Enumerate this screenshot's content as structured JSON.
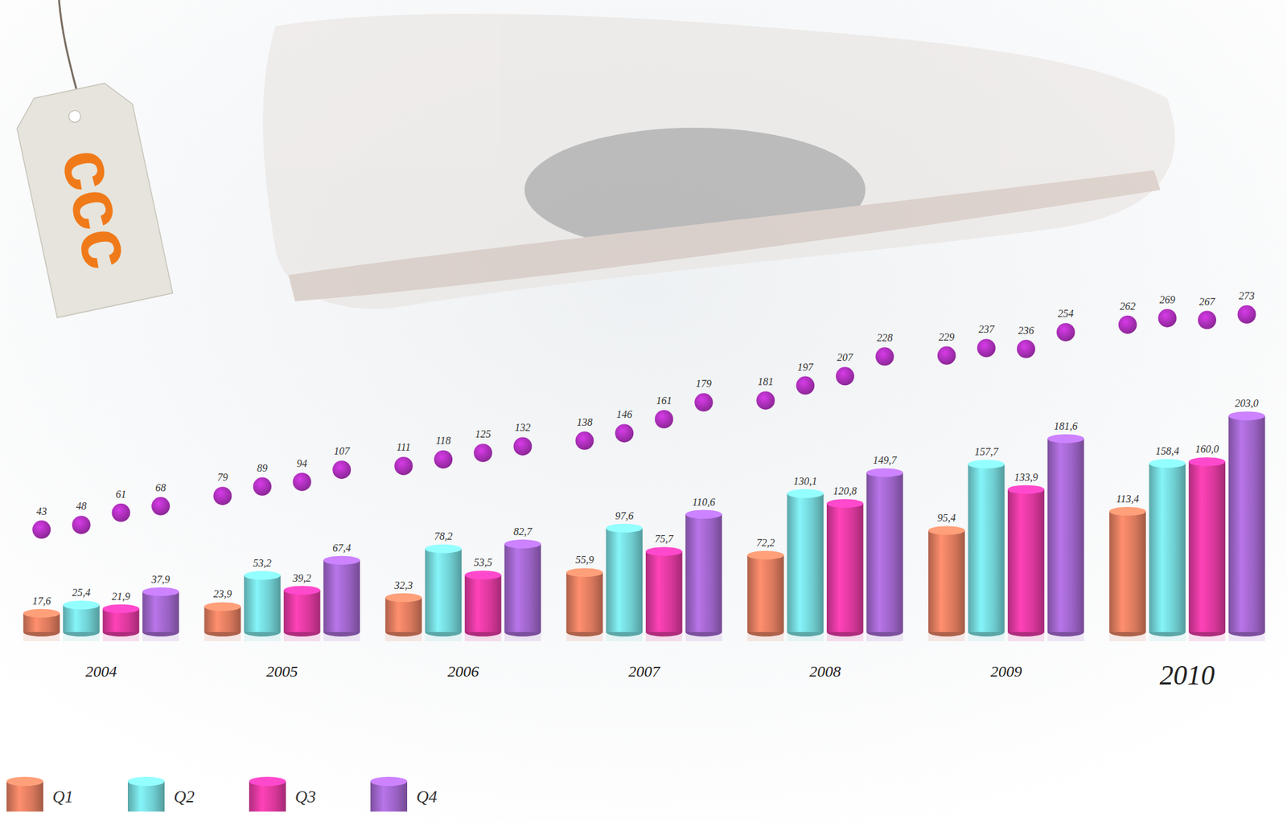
{
  "logo": "ccc",
  "chart_data": [
    {
      "type": "bar",
      "categories": [
        "2004",
        "2005",
        "2006",
        "2007",
        "2008",
        "2009",
        "2010"
      ],
      "series": [
        {
          "name": "Q1",
          "color": "#d8785c",
          "values": [
            17.6,
            23.9,
            32.3,
            55.9,
            72.2,
            95.4,
            113.4
          ],
          "value_labels": [
            "17,6",
            "23,9",
            "32,3",
            "55,9",
            "72,2",
            "95,4",
            "113,4"
          ]
        },
        {
          "name": "Q2",
          "color": "#6fcdd0",
          "values": [
            25.4,
            53.2,
            78.2,
            97.6,
            130.1,
            157.7,
            158.4
          ],
          "value_labels": [
            "25,4",
            "53,2",
            "78,2",
            "97,6",
            "130,1",
            "157,7",
            "158,4"
          ]
        },
        {
          "name": "Q3",
          "color": "#d8379a",
          "values": [
            21.9,
            39.2,
            53.5,
            75.7,
            120.8,
            133.9,
            160.0
          ],
          "value_labels": [
            "21,9",
            "39,2",
            "53,5",
            "75,7",
            "120,8",
            "133,9",
            "160,0"
          ]
        },
        {
          "name": "Q4",
          "color": "#9a62c4",
          "values": [
            37.9,
            67.4,
            82.7,
            110.6,
            149.7,
            181.6,
            203.0
          ],
          "value_labels": [
            "37,9",
            "67,4",
            "82,7",
            "110,6",
            "149,7",
            "181,6",
            "203,0"
          ]
        }
      ],
      "data_labels": true,
      "legend": "bottom-left",
      "tick_labels": false
    },
    {
      "type": "scatter",
      "values": [
        43,
        48,
        61,
        68,
        79,
        89,
        94,
        107,
        111,
        118,
        125,
        132,
        138,
        146,
        161,
        179,
        181,
        197,
        207,
        228,
        229,
        237,
        236,
        254,
        262,
        269,
        267,
        273
      ],
      "color": "#9c2ba8",
      "marker": "circle",
      "data_labels": true,
      "tick_labels": false
    }
  ]
}
